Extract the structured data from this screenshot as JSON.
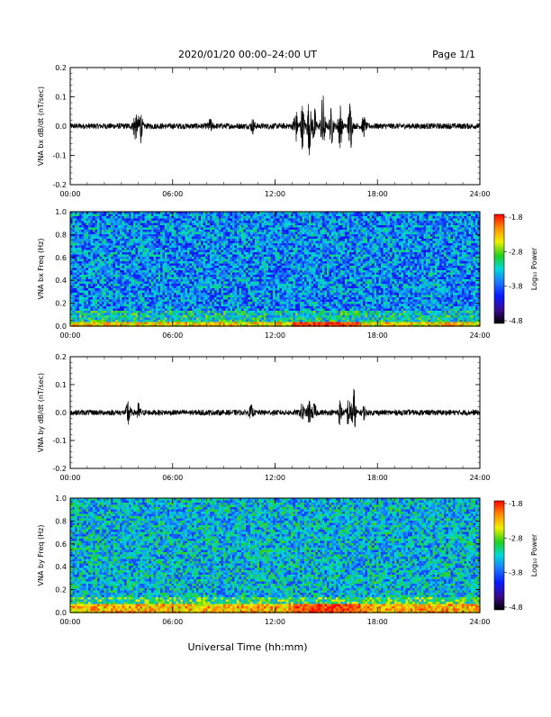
{
  "header": {
    "title": "2020/01/20  00:00–24:00 UT",
    "page": "Page 1/1"
  },
  "xlabel": "Universal Time (hh:mm)",
  "colors": {
    "trace": "#000000",
    "colormap": [
      "#000000",
      "#3a0a8a",
      "#0a1aff",
      "#1a7aff",
      "#00d8d8",
      "#20d020",
      "#f0f000",
      "#ff8800",
      "#ff0000"
    ]
  },
  "chart_data": [
    {
      "type": "line",
      "ylabel": "VNA bx dB/dt (nT/sec)",
      "xlim": [
        0,
        24
      ],
      "ylim": [
        -0.2,
        0.2
      ],
      "x_ticks": [
        "00:00",
        "06:00",
        "12:00",
        "18:00",
        "24:00"
      ],
      "y_ticks": [
        "0.2",
        "0.1",
        "0.0",
        "-0.1",
        "-0.2"
      ],
      "baseline": 0.0,
      "noise_amplitude": 0.01,
      "bursts": [
        {
          "t": 3.8,
          "amp": 0.05
        },
        {
          "t": 4.1,
          "amp": 0.06
        },
        {
          "t": 8.2,
          "amp": 0.02
        },
        {
          "t": 10.7,
          "amp": 0.02
        },
        {
          "t": 13.2,
          "amp": 0.06
        },
        {
          "t": 13.6,
          "amp": 0.07
        },
        {
          "t": 14.0,
          "amp": 0.09
        },
        {
          "t": 14.3,
          "amp": 0.06
        },
        {
          "t": 14.8,
          "amp": 0.11
        },
        {
          "t": 15.3,
          "amp": 0.06
        },
        {
          "t": 15.8,
          "amp": 0.08
        },
        {
          "t": 16.4,
          "amp": 0.09
        },
        {
          "t": 17.2,
          "amp": 0.03
        }
      ]
    },
    {
      "type": "heatmap",
      "ylabel": "VNA bx Freq (Hz)",
      "xlim": [
        0,
        24
      ],
      "ylim": [
        0,
        1.0
      ],
      "x_ticks": [
        "00:00",
        "06:00",
        "12:00",
        "18:00",
        "24:00"
      ],
      "y_ticks": [
        "1.0",
        "0.8",
        "0.6",
        "0.4",
        "0.2",
        "0.0"
      ],
      "colorbar": {
        "label": "Log₁₀ Power",
        "ticks": [
          "-1.8",
          "-2.8",
          "-3.8",
          "-4.8"
        ],
        "range": [
          -4.8,
          -1.8
        ]
      },
      "background_log_power": -3.6,
      "low_freq_band": {
        "max_freq": 0.05,
        "log_power": -2.6
      },
      "enhanced_intervals": [
        {
          "start": 13.0,
          "end": 17.0,
          "log_power": -2.0
        }
      ]
    },
    {
      "type": "line",
      "ylabel": "VNA by dB/dt (nT/sec)",
      "xlim": [
        0,
        24
      ],
      "ylim": [
        -0.2,
        0.2
      ],
      "x_ticks": [
        "00:00",
        "06:00",
        "12:00",
        "18:00",
        "24:00"
      ],
      "y_ticks": [
        "0.2",
        "0.1",
        "0.0",
        "-0.1",
        "-0.2"
      ],
      "baseline": 0.0,
      "noise_amplitude": 0.01,
      "bursts": [
        {
          "t": 3.4,
          "amp": 0.05
        },
        {
          "t": 4.0,
          "amp": 0.03
        },
        {
          "t": 10.6,
          "amp": 0.02
        },
        {
          "t": 13.6,
          "amp": 0.03
        },
        {
          "t": 14.0,
          "amp": 0.04
        },
        {
          "t": 14.3,
          "amp": 0.03
        },
        {
          "t": 15.8,
          "amp": 0.04
        },
        {
          "t": 16.3,
          "amp": 0.05
        },
        {
          "t": 16.6,
          "amp": 0.09
        },
        {
          "t": 17.2,
          "amp": 0.02
        }
      ]
    },
    {
      "type": "heatmap",
      "ylabel": "VNA by Freq (Hz)",
      "xlim": [
        0,
        24
      ],
      "ylim": [
        0,
        1.0
      ],
      "x_ticks": [
        "00:00",
        "06:00",
        "12:00",
        "18:00",
        "24:00"
      ],
      "y_ticks": [
        "1.0",
        "0.8",
        "0.6",
        "0.4",
        "0.2",
        "0.0"
      ],
      "colorbar": {
        "label": "Log₁₀ Power",
        "ticks": [
          "-1.8",
          "-2.8",
          "-3.8",
          "-4.8"
        ],
        "range": [
          -4.8,
          -1.8
        ]
      },
      "background_log_power": -3.4,
      "low_freq_band": {
        "max_freq": 0.08,
        "log_power": -2.5
      },
      "enhanced_intervals": [
        {
          "start": 13.0,
          "end": 17.0,
          "log_power": -2.0
        }
      ]
    }
  ]
}
